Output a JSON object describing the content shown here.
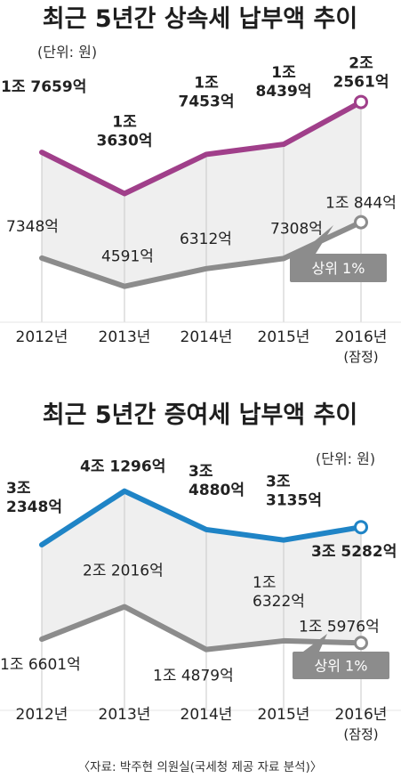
{
  "source": "〈자료: 박주현 의원실(국세청 제공 자료 분석)〉",
  "chart_data": [
    {
      "type": "line",
      "title": "최근 5년간 상속세 납부액 추이",
      "unit": "(단위: 원)",
      "categories": [
        "2012년",
        "2013년",
        "2014년",
        "2015년",
        "2016년"
      ],
      "category_note": "(잠정)",
      "series": [
        {
          "values": [
            17659,
            13630,
            17453,
            18439,
            22561
          ],
          "labels": [
            "1조 7659억",
            "1조\n3630억",
            "1조\n7453억",
            "1조\n8439억",
            "2조\n2561억"
          ],
          "color": "#a03f8a"
        },
        {
          "values": [
            7348,
            4591,
            6312,
            7308,
            10844
          ],
          "labels": [
            "7348억",
            "4591억",
            "6312억",
            "7308억",
            "1조 844억"
          ],
          "color": "#8c8c8c"
        }
      ],
      "annotation": "상위 1%"
    },
    {
      "type": "line",
      "title": "최근 5년간 증여세 납부액 추이",
      "unit": "(단위: 원)",
      "categories": [
        "2012년",
        "2013년",
        "2014년",
        "2015년",
        "2016년"
      ],
      "category_note": "(잠정)",
      "series": [
        {
          "values": [
            32348,
            41296,
            34880,
            33135,
            35282
          ],
          "labels": [
            "3조\n2348억",
            "4조 1296억",
            "3조\n4880억",
            "3조\n3135억",
            "3조 5282억"
          ],
          "color": "#1f84c6"
        },
        {
          "values": [
            16601,
            22016,
            14879,
            16322,
            15976
          ],
          "labels": [
            "1조 6601억",
            "2조 2016억",
            "1조 4879억",
            "1조\n6322억",
            "1조 5976억"
          ],
          "color": "#8c8c8c"
        }
      ],
      "annotation": "상위 1%"
    }
  ]
}
